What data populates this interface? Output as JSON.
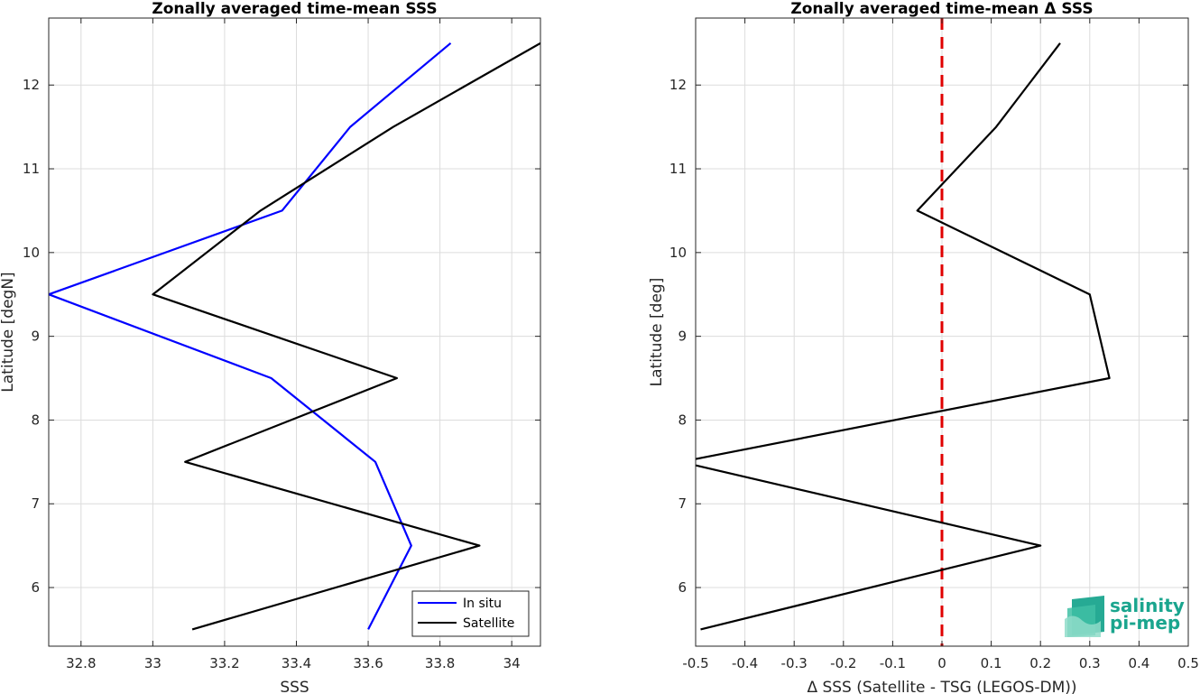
{
  "colors": {
    "insitu": "#0000ff",
    "satellite": "#000000",
    "zero_line": "#e00000",
    "logo": "#1aa58e"
  },
  "logo": {
    "line1": "salinity",
    "line2": "pi-mep"
  },
  "chart_data": [
    {
      "type": "line",
      "title": "Zonally averaged time-mean SSS",
      "xlabel": "SSS",
      "ylabel": "Latitude [degN]",
      "xlim": [
        32.71,
        34.08
      ],
      "ylim": [
        5.3,
        12.8
      ],
      "xticks": [
        32.8,
        33,
        33.2,
        33.4,
        33.6,
        33.8,
        34
      ],
      "xtick_labels": [
        "32.8",
        "33",
        "33.2",
        "33.4",
        "33.6",
        "33.8",
        "34"
      ],
      "yticks": [
        6,
        7,
        8,
        9,
        10,
        11,
        12
      ],
      "ytick_labels": [
        "6",
        "7",
        "8",
        "9",
        "10",
        "11",
        "12"
      ],
      "grid": true,
      "legend": "bottom-right",
      "series": [
        {
          "name": "In situ",
          "color_key": "insitu",
          "points": [
            [
              33.6,
              5.5
            ],
            [
              33.72,
              6.5
            ],
            [
              33.62,
              7.5
            ],
            [
              33.33,
              8.5
            ],
            [
              32.71,
              9.5
            ],
            [
              33.36,
              10.5
            ],
            [
              33.55,
              11.5
            ],
            [
              33.83,
              12.5
            ]
          ]
        },
        {
          "name": "Satellite",
          "color_key": "satellite",
          "points": [
            [
              33.11,
              5.5
            ],
            [
              33.91,
              6.5
            ],
            [
              33.09,
              7.5
            ],
            [
              33.68,
              8.5
            ],
            [
              33.0,
              9.5
            ],
            [
              33.3,
              10.5
            ],
            [
              33.67,
              11.5
            ],
            [
              34.08,
              12.5
            ]
          ]
        }
      ]
    },
    {
      "type": "line",
      "title": "Zonally averaged time-mean Δ SSS",
      "xlabel": "Δ SSS (Satellite - TSG (LEGOS-DM))",
      "ylabel": "Latitude [deg]",
      "xlim": [
        -0.5,
        0.5
      ],
      "ylim": [
        5.3,
        12.8
      ],
      "xticks": [
        -0.5,
        -0.4,
        -0.3,
        -0.2,
        -0.1,
        0,
        0.1,
        0.2,
        0.3,
        0.4,
        0.5
      ],
      "xtick_labels": [
        "-0.5",
        "-0.4",
        "-0.3",
        "-0.2",
        "-0.1",
        "0",
        "0.1",
        "0.2",
        "0.3",
        "0.4",
        "0.5"
      ],
      "yticks": [
        6,
        7,
        8,
        9,
        10,
        11,
        12
      ],
      "ytick_labels": [
        "6",
        "7",
        "8",
        "9",
        "10",
        "11",
        "12"
      ],
      "grid": true,
      "reference_line": {
        "x": 0,
        "style": "dashed",
        "color_key": "zero_line"
      },
      "series": [
        {
          "color_key": "satellite",
          "points": [
            [
              -0.49,
              5.5
            ],
            [
              0.2,
              6.5
            ],
            [
              -0.53,
              7.5
            ],
            [
              0.34,
              8.5
            ],
            [
              0.3,
              9.5
            ],
            [
              -0.05,
              10.5
            ],
            [
              0.11,
              11.5
            ],
            [
              0.24,
              12.5
            ]
          ]
        }
      ]
    }
  ]
}
